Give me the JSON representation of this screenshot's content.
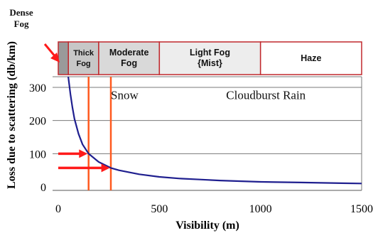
{
  "chart_data": {
    "type": "line",
    "xlabel": "Visibility (m)",
    "ylabel": "Loss due to scattering (db/km)",
    "xlim": [
      0,
      1500
    ],
    "ylim": [
      0,
      300
    ],
    "x_ticks": [
      "0",
      "500",
      "1000",
      "1500"
    ],
    "y_ticks": [
      "0",
      "100",
      "200",
      "300"
    ],
    "grid": "horizontal",
    "series": [
      {
        "color": "#1f1f8f",
        "x": [
          40,
          50,
          60,
          70,
          80,
          100,
          120,
          150,
          200,
          260,
          300,
          400,
          500,
          600,
          700,
          800,
          1000,
          1200,
          1400,
          1500
        ],
        "y": [
          390,
          330,
          280,
          240,
          205,
          160,
          128,
          100,
          75,
          57,
          50,
          38,
          30,
          25,
          22,
          19,
          15,
          13,
          11,
          10
        ]
      }
    ],
    "bands": [
      {
        "label_lines": [
          "Dense",
          "Fog"
        ],
        "x_start": 0,
        "x_end": 50,
        "fill": "#9a9a9a"
      },
      {
        "label_lines": [
          "Thick",
          "Fog"
        ],
        "x_start": 50,
        "x_end": 200,
        "fill": "#c7c7c7"
      },
      {
        "label_lines": [
          "Moderate",
          "Fog"
        ],
        "x_start": 200,
        "x_end": 500,
        "fill": "#d9d9d9"
      },
      {
        "label_lines": [
          "Light Fog",
          "{Mist}"
        ],
        "x_start": 500,
        "x_end": 1000,
        "fill": "#ededed"
      },
      {
        "label_lines": [
          "Haze"
        ],
        "x_start": 1000,
        "x_end": 1500,
        "fill": "#ffffff"
      }
    ],
    "band_border_color": "#c0282d",
    "vertical_markers": [
      {
        "x": 150,
        "color": "#ff5a1f"
      },
      {
        "x": 260,
        "color": "#ff5a1f"
      }
    ],
    "arrows": [
      {
        "y": 100,
        "to_x": 145,
        "color": "#ff1a1a"
      },
      {
        "y": 57,
        "to_x": 255,
        "color": "#ff1a1a"
      }
    ],
    "annotations": [
      {
        "text": "Snow",
        "x": 260,
        "y": 265
      },
      {
        "text": "Cloudburst Rain",
        "x": 830,
        "y": 265
      }
    ]
  }
}
